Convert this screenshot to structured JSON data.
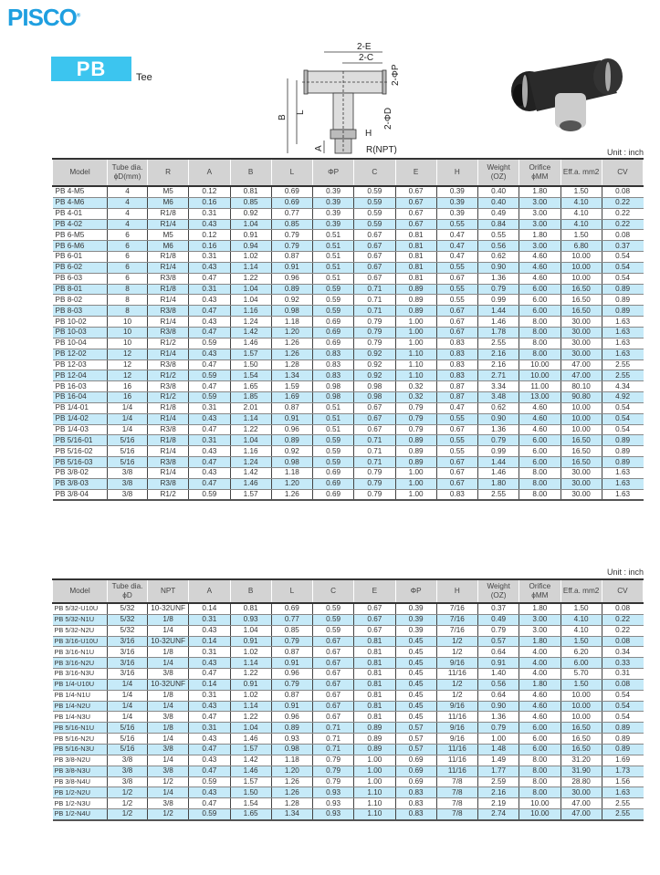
{
  "brand": {
    "logo": "PISCO",
    "accent": "#1f9fe0"
  },
  "product": {
    "code": "PB",
    "name": "Tee",
    "badge_color": "#3cc5ef"
  },
  "diagram": {
    "labels": [
      "2-E",
      "2-C",
      "2-ΦP",
      "2-ΦD",
      "L",
      "B",
      "A",
      "H",
      "R(NPT)"
    ]
  },
  "table1": {
    "unit": "Unit : inch",
    "headers": [
      "Model",
      "Tube dia. ϕD(mm)",
      "R",
      "A",
      "B",
      "L",
      "ΦP",
      "C",
      "E",
      "H",
      "Weight (OZ)",
      "Orifice ϕMM",
      "Eff.a. mm2",
      "CV"
    ],
    "rows": [
      [
        "PB 4-M5",
        "4",
        "M5",
        "0.12",
        "0.81",
        "0.69",
        "0.39",
        "0.59",
        "0.67",
        "0.39",
        "0.40",
        "1.80",
        "1.50",
        "0.08"
      ],
      [
        "PB 4-M6",
        "4",
        "M6",
        "0.16",
        "0.85",
        "0.69",
        "0.39",
        "0.59",
        "0.67",
        "0.39",
        "0.40",
        "3.00",
        "4.10",
        "0.22"
      ],
      [
        "PB 4-01",
        "4",
        "R1/8",
        "0.31",
        "0.92",
        "0.77",
        "0.39",
        "0.59",
        "0.67",
        "0.39",
        "0.49",
        "3.00",
        "4.10",
        "0.22"
      ],
      [
        "PB 4-02",
        "4",
        "R1/4",
        "0.43",
        "1.04",
        "0.85",
        "0.39",
        "0.59",
        "0.67",
        "0.55",
        "0.84",
        "3.00",
        "4.10",
        "0.22"
      ],
      [
        "PB 6-M5",
        "6",
        "M5",
        "0.12",
        "0.91",
        "0.79",
        "0.51",
        "0.67",
        "0.81",
        "0.47",
        "0.55",
        "1.80",
        "1.50",
        "0.08"
      ],
      [
        "PB 6-M6",
        "6",
        "M6",
        "0.16",
        "0.94",
        "0.79",
        "0.51",
        "0.67",
        "0.81",
        "0.47",
        "0.56",
        "3.00",
        "6.80",
        "0.37"
      ],
      [
        "PB 6-01",
        "6",
        "R1/8",
        "0.31",
        "1.02",
        "0.87",
        "0.51",
        "0.67",
        "0.81",
        "0.47",
        "0.62",
        "4.60",
        "10.00",
        "0.54"
      ],
      [
        "PB 6-02",
        "6",
        "R1/4",
        "0.43",
        "1.14",
        "0.91",
        "0.51",
        "0.67",
        "0.81",
        "0.55",
        "0.90",
        "4.60",
        "10.00",
        "0.54"
      ],
      [
        "PB 6-03",
        "6",
        "R3/8",
        "0.47",
        "1.22",
        "0.96",
        "0.51",
        "0.67",
        "0.81",
        "0.67",
        "1.36",
        "4.60",
        "10.00",
        "0.54"
      ],
      [
        "PB 8-01",
        "8",
        "R1/8",
        "0.31",
        "1.04",
        "0.89",
        "0.59",
        "0.71",
        "0.89",
        "0.55",
        "0.79",
        "6.00",
        "16.50",
        "0.89"
      ],
      [
        "PB 8-02",
        "8",
        "R1/4",
        "0.43",
        "1.04",
        "0.92",
        "0.59",
        "0.71",
        "0.89",
        "0.55",
        "0.99",
        "6.00",
        "16.50",
        "0.89"
      ],
      [
        "PB 8-03",
        "8",
        "R3/8",
        "0.47",
        "1.16",
        "0.98",
        "0.59",
        "0.71",
        "0.89",
        "0.67",
        "1.44",
        "6.00",
        "16.50",
        "0.89"
      ],
      [
        "PB 10-02",
        "10",
        "R1/4",
        "0.43",
        "1.24",
        "1.18",
        "0.69",
        "0.79",
        "1.00",
        "0.67",
        "1.46",
        "8.00",
        "30.00",
        "1.63"
      ],
      [
        "PB 10-03",
        "10",
        "R3/8",
        "0.47",
        "1.42",
        "1.20",
        "0.69",
        "0.79",
        "1.00",
        "0.67",
        "1.78",
        "8.00",
        "30.00",
        "1.63"
      ],
      [
        "PB 10-04",
        "10",
        "R1/2",
        "0.59",
        "1.46",
        "1.26",
        "0.69",
        "0.79",
        "1.00",
        "0.83",
        "2.55",
        "8.00",
        "30.00",
        "1.63"
      ],
      [
        "PB 12-02",
        "12",
        "R1/4",
        "0.43",
        "1.57",
        "1.26",
        "0.83",
        "0.92",
        "1.10",
        "0.83",
        "2.16",
        "8.00",
        "30.00",
        "1.63"
      ],
      [
        "PB 12-03",
        "12",
        "R3/8",
        "0.47",
        "1.50",
        "1.28",
        "0.83",
        "0.92",
        "1.10",
        "0.83",
        "2.16",
        "10.00",
        "47.00",
        "2.55"
      ],
      [
        "PB 12-04",
        "12",
        "R1/2",
        "0.59",
        "1.54",
        "1.34",
        "0.83",
        "0.92",
        "1.10",
        "0.83",
        "2.71",
        "10.00",
        "47.00",
        "2.55"
      ],
      [
        "PB 16-03",
        "16",
        "R3/8",
        "0.47",
        "1.65",
        "1.59",
        "0.98",
        "0.98",
        "0.32",
        "0.87",
        "3.34",
        "11.00",
        "80.10",
        "4.34"
      ],
      [
        "PB 16-04",
        "16",
        "R1/2",
        "0.59",
        "1.85",
        "1.69",
        "0.98",
        "0.98",
        "0.32",
        "0.87",
        "3.48",
        "13.00",
        "90.80",
        "4.92"
      ],
      [
        "PB 1/4-01",
        "1/4",
        "R1/8",
        "0.31",
        "2.01",
        "0.87",
        "0.51",
        "0.67",
        "0.79",
        "0.47",
        "0.62",
        "4.60",
        "10.00",
        "0.54"
      ],
      [
        "PB 1/4-02",
        "1/4",
        "R1/4",
        "0.43",
        "1.14",
        "0.91",
        "0.51",
        "0.67",
        "0.79",
        "0.55",
        "0.90",
        "4.60",
        "10.00",
        "0.54"
      ],
      [
        "PB 1/4-03",
        "1/4",
        "R3/8",
        "0.47",
        "1.22",
        "0.96",
        "0.51",
        "0.67",
        "0.79",
        "0.67",
        "1.36",
        "4.60",
        "10.00",
        "0.54"
      ],
      [
        "PB 5/16-01",
        "5/16",
        "R1/8",
        "0.31",
        "1.04",
        "0.89",
        "0.59",
        "0.71",
        "0.89",
        "0.55",
        "0.79",
        "6.00",
        "16.50",
        "0.89"
      ],
      [
        "PB 5/16-02",
        "5/16",
        "R1/4",
        "0.43",
        "1.16",
        "0.92",
        "0.59",
        "0.71",
        "0.89",
        "0.55",
        "0.99",
        "6.00",
        "16.50",
        "0.89"
      ],
      [
        "PB 5/16-03",
        "5/16",
        "R3/8",
        "0.47",
        "1.24",
        "0.98",
        "0.59",
        "0.71",
        "0.89",
        "0.67",
        "1.44",
        "6.00",
        "16.50",
        "0.89"
      ],
      [
        "PB 3/8-02",
        "3/8",
        "R1/4",
        "0.43",
        "1.42",
        "1.18",
        "0.69",
        "0.79",
        "1.00",
        "0.67",
        "1.46",
        "8.00",
        "30.00",
        "1.63"
      ],
      [
        "PB 3/8-03",
        "3/8",
        "R3/8",
        "0.47",
        "1.46",
        "1.20",
        "0.69",
        "0.79",
        "1.00",
        "0.67",
        "1.80",
        "8.00",
        "30.00",
        "1.63"
      ],
      [
        "PB 3/8-04",
        "3/8",
        "R1/2",
        "0.59",
        "1.57",
        "1.26",
        "0.69",
        "0.79",
        "1.00",
        "0.83",
        "2.55",
        "8.00",
        "30.00",
        "1.63"
      ]
    ]
  },
  "table2": {
    "unit": "Unit : inch",
    "headers": [
      "Model",
      "Tube dia. ϕD",
      "NPT",
      "A",
      "B",
      "L",
      "C",
      "E",
      "ΦP",
      "H",
      "Weight (OZ)",
      "Orifice ϕMM",
      "Eff.a. mm2",
      "CV"
    ],
    "rows": [
      [
        "PB 5/32-U10U",
        "5/32",
        "10-32UNF",
        "0.14",
        "0.81",
        "0.69",
        "0.59",
        "0.67",
        "0.39",
        "7/16",
        "0.37",
        "1.80",
        "1.50",
        "0.08"
      ],
      [
        "PB 5/32-N1U",
        "5/32",
        "1/8",
        "0.31",
        "0.93",
        "0.77",
        "0.59",
        "0.67",
        "0.39",
        "7/16",
        "0.49",
        "3.00",
        "4.10",
        "0.22"
      ],
      [
        "PB 5/32-N2U",
        "5/32",
        "1/4",
        "0.43",
        "1.04",
        "0.85",
        "0.59",
        "0.67",
        "0.39",
        "7/16",
        "0.79",
        "3.00",
        "4.10",
        "0.22"
      ],
      [
        "PB 3/16-U10U",
        "3/16",
        "10-32UNF",
        "0.14",
        "0.91",
        "0.79",
        "0.67",
        "0.81",
        "0.45",
        "1/2",
        "0.57",
        "1.80",
        "1.50",
        "0.08"
      ],
      [
        "PB 3/16-N1U",
        "3/16",
        "1/8",
        "0.31",
        "1.02",
        "0.87",
        "0.67",
        "0.81",
        "0.45",
        "1/2",
        "0.64",
        "4.00",
        "6.20",
        "0.34"
      ],
      [
        "PB 3/16-N2U",
        "3/16",
        "1/4",
        "0.43",
        "1.14",
        "0.91",
        "0.67",
        "0.81",
        "0.45",
        "9/16",
        "0.91",
        "4.00",
        "6.00",
        "0.33"
      ],
      [
        "PB 3/16-N3U",
        "3/16",
        "3/8",
        "0.47",
        "1.22",
        "0.96",
        "0.67",
        "0.81",
        "0.45",
        "11/16",
        "1.40",
        "4.00",
        "5.70",
        "0.31"
      ],
      [
        "PB 1/4-U10U",
        "1/4",
        "10-32UNF",
        "0.14",
        "0.91",
        "0.79",
        "0.67",
        "0.81",
        "0.45",
        "1/2",
        "0.56",
        "1.80",
        "1.50",
        "0.08"
      ],
      [
        "PB 1/4-N1U",
        "1/4",
        "1/8",
        "0.31",
        "1.02",
        "0.87",
        "0.67",
        "0.81",
        "0.45",
        "1/2",
        "0.64",
        "4.60",
        "10.00",
        "0.54"
      ],
      [
        "PB 1/4-N2U",
        "1/4",
        "1/4",
        "0.43",
        "1.14",
        "0.91",
        "0.67",
        "0.81",
        "0.45",
        "9/16",
        "0.90",
        "4.60",
        "10.00",
        "0.54"
      ],
      [
        "PB 1/4-N3U",
        "1/4",
        "3/8",
        "0.47",
        "1.22",
        "0.96",
        "0.67",
        "0.81",
        "0.45",
        "11/16",
        "1.36",
        "4.60",
        "10.00",
        "0.54"
      ],
      [
        "PB 5/16-N1U",
        "5/16",
        "1/8",
        "0.31",
        "1.04",
        "0.89",
        "0.71",
        "0.89",
        "0.57",
        "9/16",
        "0.79",
        "6.00",
        "16.50",
        "0.89"
      ],
      [
        "PB 5/16-N2U",
        "5/16",
        "1/4",
        "0.43",
        "1.46",
        "0.93",
        "0.71",
        "0.89",
        "0.57",
        "9/16",
        "1.00",
        "6.00",
        "16.50",
        "0.89"
      ],
      [
        "PB 5/16-N3U",
        "5/16",
        "3/8",
        "0.47",
        "1.57",
        "0.98",
        "0.71",
        "0.89",
        "0.57",
        "11/16",
        "1.48",
        "6.00",
        "16.50",
        "0.89"
      ],
      [
        "PB 3/8-N2U",
        "3/8",
        "1/4",
        "0.43",
        "1.42",
        "1.18",
        "0.79",
        "1.00",
        "0.69",
        "11/16",
        "1.49",
        "8.00",
        "31.20",
        "1.69"
      ],
      [
        "PB 3/8-N3U",
        "3/8",
        "3/8",
        "0.47",
        "1.46",
        "1.20",
        "0.79",
        "1.00",
        "0.69",
        "11/16",
        "1.77",
        "8.00",
        "31.90",
        "1.73"
      ],
      [
        "PB 3/8-N4U",
        "3/8",
        "1/2",
        "0.59",
        "1.57",
        "1.26",
        "0.79",
        "1.00",
        "0.69",
        "7/8",
        "2.59",
        "8.00",
        "28.80",
        "1.56"
      ],
      [
        "PB 1/2-N2U",
        "1/2",
        "1/4",
        "0.43",
        "1.50",
        "1.26",
        "0.93",
        "1.10",
        "0.83",
        "7/8",
        "2.16",
        "8.00",
        "30.00",
        "1.63"
      ],
      [
        "PB 1/2-N3U",
        "1/2",
        "3/8",
        "0.47",
        "1.54",
        "1.28",
        "0.93",
        "1.10",
        "0.83",
        "7/8",
        "2.19",
        "10.00",
        "47.00",
        "2.55"
      ],
      [
        "PB 1/2-N4U",
        "1/2",
        "1/2",
        "0.59",
        "1.65",
        "1.34",
        "0.93",
        "1.10",
        "0.83",
        "7/8",
        "2.74",
        "10.00",
        "47.00",
        "2.55"
      ]
    ]
  }
}
